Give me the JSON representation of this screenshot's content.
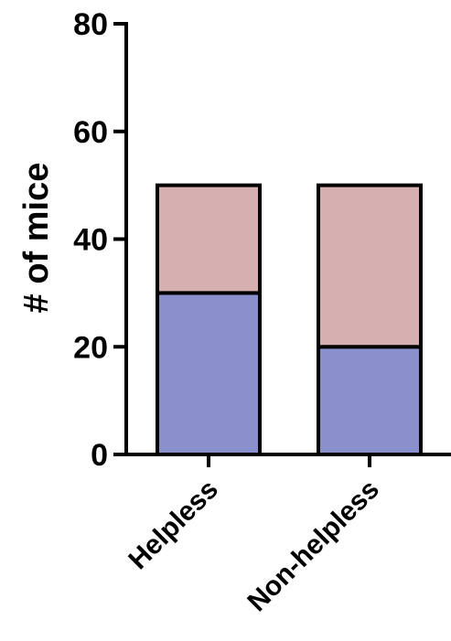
{
  "chart_data": {
    "type": "bar",
    "stacked": true,
    "categories": [
      "Helpless",
      "Non-helpless"
    ],
    "series": [
      {
        "values": [
          30,
          20
        ],
        "color": "#8a90cc"
      },
      {
        "values": [
          20,
          30
        ],
        "color": "#d6b0b0"
      }
    ],
    "ylabel": "# of mice",
    "xlabel": "",
    "ylim": [
      0,
      80
    ],
    "yticks": [
      0,
      20,
      40,
      60,
      80
    ],
    "grid": false,
    "legend": "none"
  }
}
